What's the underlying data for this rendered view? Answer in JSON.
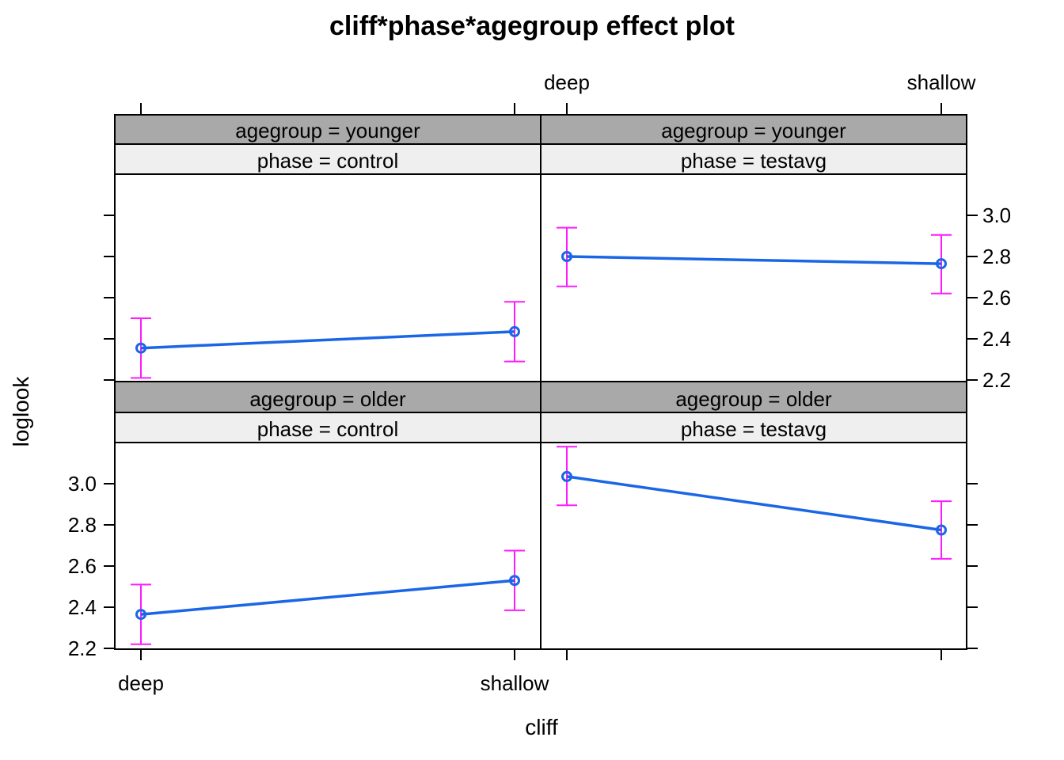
{
  "chart_data": {
    "type": "line",
    "title": "cliff*phase*agegroup effect plot",
    "xlabel": "cliff",
    "ylabel": "loglook",
    "categories": [
      "deep",
      "shallow"
    ],
    "ylim": [
      2.2,
      3.2
    ],
    "yticks": [
      "2.2",
      "2.4",
      "2.6",
      "2.8",
      "3.0"
    ],
    "grid": false,
    "colors": {
      "line": "#1a66e6",
      "errorbar": "#ff1aff",
      "strip_dark": "#a9a9a9",
      "strip_light": "#efefef"
    },
    "panels": [
      {
        "agegroup_label": "agegroup = younger",
        "phase_label": "phase = control",
        "row": "top",
        "col": "left",
        "values": [
          2.355,
          2.435
        ],
        "lower": [
          2.21,
          2.29
        ],
        "upper": [
          2.5,
          2.58
        ]
      },
      {
        "agegroup_label": "agegroup = younger",
        "phase_label": "phase = testavg",
        "row": "top",
        "col": "right",
        "values": [
          2.8,
          2.765
        ],
        "lower": [
          2.655,
          2.62
        ],
        "upper": [
          2.94,
          2.905
        ]
      },
      {
        "agegroup_label": "agegroup = older",
        "phase_label": "phase = control",
        "row": "bottom",
        "col": "left",
        "values": [
          2.365,
          2.53
        ],
        "lower": [
          2.22,
          2.385
        ],
        "upper": [
          2.51,
          2.675
        ]
      },
      {
        "agegroup_label": "agegroup = older",
        "phase_label": "phase = testavg",
        "row": "bottom",
        "col": "right",
        "values": [
          3.035,
          2.775
        ],
        "lower": [
          2.895,
          2.635
        ],
        "upper": [
          3.18,
          2.915
        ]
      }
    ]
  }
}
